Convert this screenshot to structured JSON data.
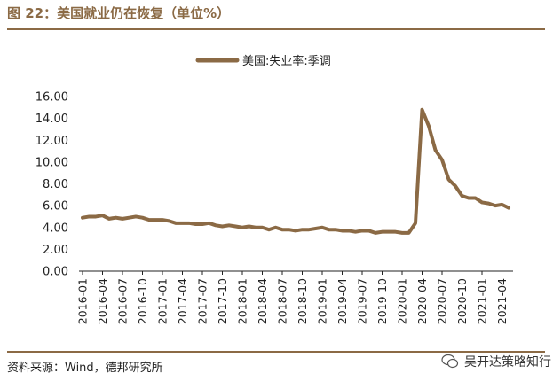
{
  "header": {
    "title": "图 22：美国就业仍在恢复（单位%）"
  },
  "footer": {
    "source": "资料来源：Wind，德邦研究所",
    "watermark": "吴开达策略知行"
  },
  "colors": {
    "accent": "#8B6A45",
    "series": "#8B6A45",
    "axis": "#222222"
  },
  "chart_data": {
    "type": "line",
    "title": "",
    "xlabel": "",
    "ylabel": "",
    "ylim": [
      0,
      16
    ],
    "yticks": [
      "0.00",
      "2.00",
      "4.00",
      "6.00",
      "8.00",
      "10.00",
      "12.00",
      "14.00",
      "16.00"
    ],
    "xtick_labels": [
      "2016-01",
      "2016-04",
      "2016-07",
      "2016-10",
      "2017-01",
      "2017-04",
      "2017-07",
      "2017-10",
      "2018-01",
      "2018-04",
      "2018-07",
      "2018-10",
      "2019-01",
      "2019-04",
      "2019-07",
      "2019-10",
      "2020-01",
      "2020-04",
      "2020-07",
      "2020-10",
      "2021-01",
      "2021-04"
    ],
    "legend": "top-center",
    "grid": false,
    "series": [
      {
        "name": "美国:失业率:季调",
        "x": [
          "2016-01",
          "2016-02",
          "2016-03",
          "2016-04",
          "2016-05",
          "2016-06",
          "2016-07",
          "2016-08",
          "2016-09",
          "2016-10",
          "2016-11",
          "2016-12",
          "2017-01",
          "2017-02",
          "2017-03",
          "2017-04",
          "2017-05",
          "2017-06",
          "2017-07",
          "2017-08",
          "2017-09",
          "2017-10",
          "2017-11",
          "2017-12",
          "2018-01",
          "2018-02",
          "2018-03",
          "2018-04",
          "2018-05",
          "2018-06",
          "2018-07",
          "2018-08",
          "2018-09",
          "2018-10",
          "2018-11",
          "2018-12",
          "2019-01",
          "2019-02",
          "2019-03",
          "2019-04",
          "2019-05",
          "2019-06",
          "2019-07",
          "2019-08",
          "2019-09",
          "2019-10",
          "2019-11",
          "2019-12",
          "2020-01",
          "2020-02",
          "2020-03",
          "2020-04",
          "2020-05",
          "2020-06",
          "2020-07",
          "2020-08",
          "2020-09",
          "2020-10",
          "2020-11",
          "2020-12",
          "2021-01",
          "2021-02",
          "2021-03",
          "2021-04",
          "2021-05"
        ],
        "values": [
          4.9,
          5.0,
          5.0,
          5.1,
          4.8,
          4.9,
          4.8,
          4.9,
          5.0,
          4.9,
          4.7,
          4.7,
          4.7,
          4.6,
          4.4,
          4.4,
          4.4,
          4.3,
          4.3,
          4.4,
          4.2,
          4.1,
          4.2,
          4.1,
          4.0,
          4.1,
          4.0,
          4.0,
          3.8,
          4.0,
          3.8,
          3.8,
          3.7,
          3.8,
          3.8,
          3.9,
          4.0,
          3.8,
          3.8,
          3.7,
          3.7,
          3.6,
          3.7,
          3.7,
          3.5,
          3.6,
          3.6,
          3.6,
          3.5,
          3.5,
          4.4,
          14.8,
          13.3,
          11.1,
          10.2,
          8.4,
          7.8,
          6.9,
          6.7,
          6.7,
          6.3,
          6.2,
          6.0,
          6.1,
          5.8
        ]
      }
    ]
  }
}
